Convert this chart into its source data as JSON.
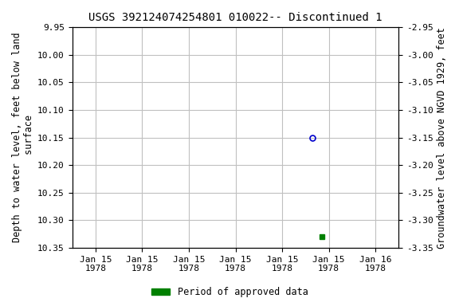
{
  "title": "USGS 392124074254801 010022-- Discontinued 1",
  "ylabel_left": "Depth to water level, feet below land\n surface",
  "ylabel_right": "Groundwater level above NGVD 1929, feet",
  "ylim_left": [
    9.95,
    10.35
  ],
  "ylim_right": [
    -2.95,
    -3.35
  ],
  "background_color": "#ffffff",
  "grid_color": "#c0c0c0",
  "open_circle_color": "#0000cc",
  "filled_square_color": "#008000",
  "legend_label": "Period of approved data",
  "legend_color": "#008000",
  "yticks_left": [
    9.95,
    10.0,
    10.05,
    10.1,
    10.15,
    10.2,
    10.25,
    10.3,
    10.35
  ],
  "yticks_right": [
    -2.95,
    -3.0,
    -3.05,
    -3.1,
    -3.15,
    -3.2,
    -3.25,
    -3.3,
    -3.35
  ],
  "title_fontsize": 10,
  "label_fontsize": 8.5,
  "tick_fontsize": 8
}
